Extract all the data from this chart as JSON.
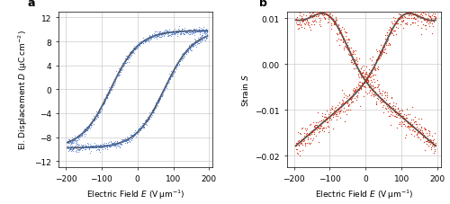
{
  "panel_a": {
    "xlabel": "Electric Field $E$ (V μm$^{-1}$)",
    "ylabel": "El. Displacement $D$ (μC cm$^{-2}$)",
    "xlim": [
      -220,
      210
    ],
    "ylim": [
      -13,
      13
    ],
    "xticks": [
      -200,
      -100,
      0,
      100,
      200
    ],
    "yticks": [
      -12,
      -8,
      -4,
      0,
      4,
      8,
      12
    ],
    "data_color": "#4472C4",
    "fit_color": "#555555",
    "label": "a",
    "Ps": 9.8,
    "Ec": 80,
    "shift": 75,
    "noise": 0.3
  },
  "panel_b": {
    "xlabel": "Electric Field $E$ (V μm$^{-1}$)",
    "ylabel": "Strain $S$",
    "xlim": [
      -220,
      210
    ],
    "ylim": [
      -0.0225,
      0.0115
    ],
    "xticks": [
      -200,
      -100,
      0,
      100,
      200
    ],
    "yticks": [
      -0.02,
      -0.01,
      0.0,
      0.01
    ],
    "data_color": "#CC2200",
    "fit_color": "#555555",
    "label": "b",
    "noise": 0.0013
  },
  "background_color": "#ffffff",
  "grid_color": "#cccccc"
}
